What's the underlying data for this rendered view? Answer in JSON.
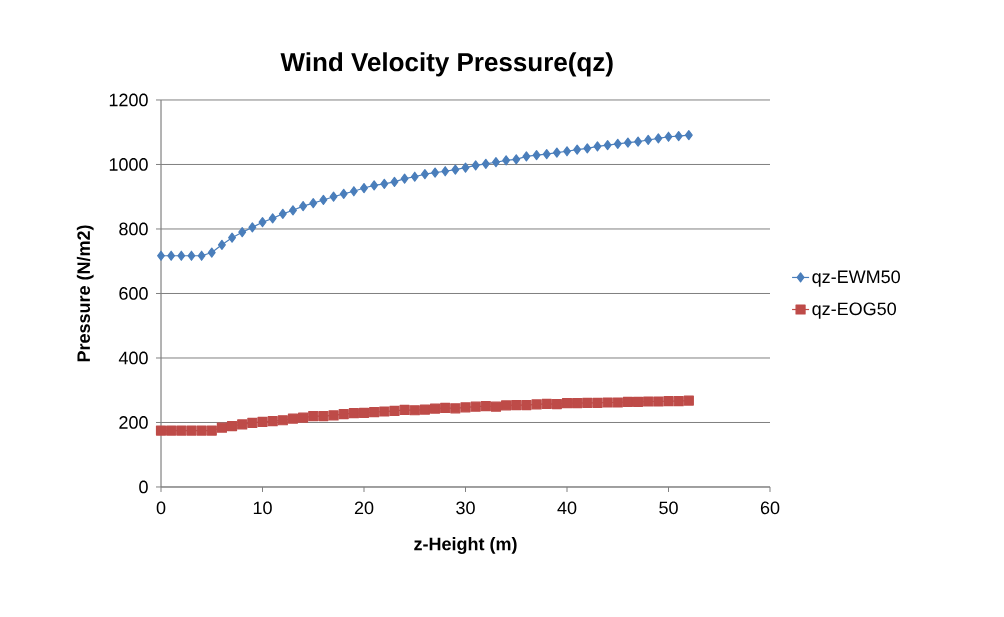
{
  "chart_data": {
    "type": "line",
    "title": "Wind Velocity Pressure(qz)",
    "xlabel": "z-Height (m)",
    "ylabel": "Pressure (N/m2)",
    "x": [
      0,
      1,
      2,
      3,
      4,
      5,
      6,
      7,
      8,
      9,
      10,
      11,
      12,
      13,
      14,
      15,
      16,
      17,
      18,
      19,
      20,
      21,
      22,
      23,
      24,
      25,
      26,
      27,
      28,
      29,
      30,
      31,
      32,
      33,
      34,
      35,
      36,
      37,
      38,
      39,
      40,
      41,
      42,
      43,
      44,
      45,
      46,
      47,
      48,
      49,
      50,
      51,
      52
    ],
    "series": [
      {
        "name": "qz-EWM50",
        "color": "#4a7ebb",
        "marker": "diamond",
        "values": [
          717,
          717,
          717,
          717,
          717,
          727,
          751,
          773,
          790,
          805,
          821,
          833,
          847,
          858,
          871,
          880,
          890,
          900,
          909,
          917,
          927,
          935,
          940,
          946,
          956,
          962,
          970,
          975,
          979,
          984,
          990,
          997,
          1002,
          1007,
          1013,
          1016,
          1025,
          1029,
          1032,
          1037,
          1041,
          1046,
          1050,
          1056,
          1060,
          1064,
          1068,
          1071,
          1076,
          1081,
          1086,
          1088,
          1091
        ]
      },
      {
        "name": "qz-EOG50",
        "color": "#be4b48",
        "marker": "square",
        "values": [
          175,
          175,
          175,
          175,
          175,
          175,
          184,
          189,
          194,
          199,
          202,
          204,
          207,
          212,
          215,
          220,
          220,
          222,
          226,
          229,
          230,
          232,
          234,
          236,
          239,
          238,
          240,
          243,
          245,
          244,
          247,
          249,
          251,
          249,
          253,
          254,
          254,
          256,
          258,
          257,
          260,
          260,
          261,
          261,
          262,
          262,
          264,
          264,
          265,
          265,
          266,
          266,
          268
        ]
      }
    ],
    "xlim": [
      0,
      60
    ],
    "xticks": [
      0,
      10,
      20,
      30,
      40,
      50,
      60
    ],
    "ylim": [
      0,
      1200
    ],
    "yticks": [
      0,
      200,
      400,
      600,
      800,
      1000,
      1200
    ],
    "grid": "y",
    "legend": "right",
    "line_style": "solid"
  }
}
